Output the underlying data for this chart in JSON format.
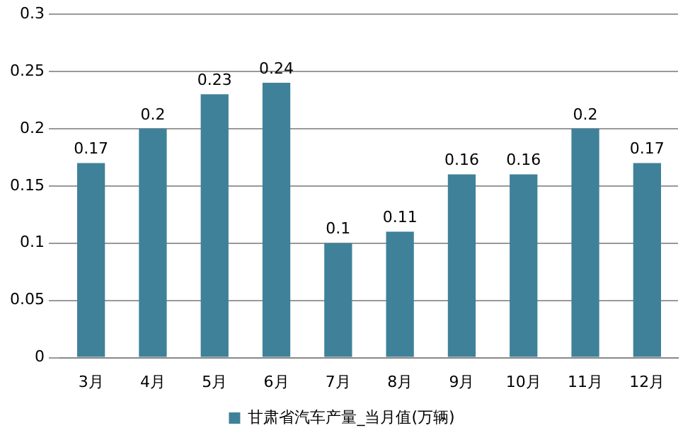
{
  "chart_data": {
    "type": "bar",
    "categories": [
      "3月",
      "4月",
      "5月",
      "6月",
      "7月",
      "8月",
      "9月",
      "10月",
      "11月",
      "12月"
    ],
    "series": [
      {
        "name": "甘肃省汽车产量_当月值(万辆)",
        "color": "#3f8199",
        "values": [
          0.17,
          0.2,
          0.23,
          0.24,
          0.1,
          0.11,
          0.16,
          0.16,
          0.2,
          0.17
        ]
      }
    ],
    "ylim": [
      0,
      0.3
    ],
    "yticks": [
      0,
      0.05,
      0.1,
      0.15,
      0.2,
      0.25,
      0.3
    ],
    "grid": "y",
    "legend": "bottom",
    "data_labels": true
  }
}
